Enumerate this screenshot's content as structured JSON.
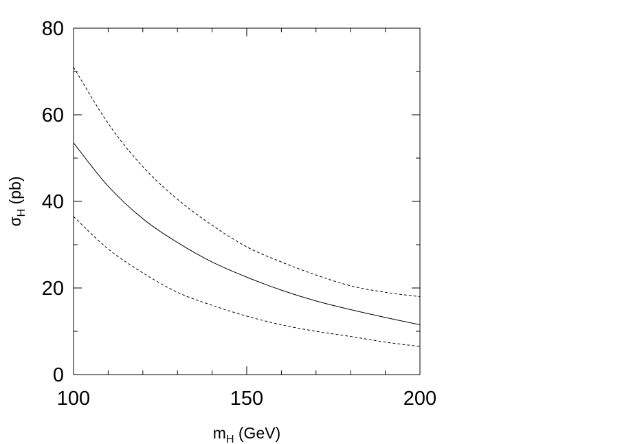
{
  "chart_data": {
    "type": "line",
    "xlabel_main": "m",
    "xlabel_sub": "H",
    "xlabel_unit": " (GeV)",
    "ylabel_main": "σ",
    "ylabel_sub": "H",
    "ylabel_unit": " (pb)",
    "xlim": [
      100,
      200
    ],
    "ylim": [
      0,
      80
    ],
    "x_ticks": [
      100,
      150,
      200
    ],
    "y_ticks": [
      0,
      20,
      40,
      60,
      80
    ],
    "x_minor_step": 10,
    "y_minor_step": 10,
    "grid": false,
    "x": [
      100,
      110,
      120,
      130,
      140,
      150,
      160,
      170,
      180,
      190,
      200
    ],
    "series": [
      {
        "style": "dashed",
        "values": [
          71,
          58,
          48,
          40.5,
          34.5,
          29.5,
          26,
          23,
          20.5,
          19,
          18
        ]
      },
      {
        "style": "solid",
        "values": [
          53.5,
          43.5,
          36,
          30.5,
          26,
          22.5,
          19.5,
          17,
          15,
          13.2,
          11.5
        ]
      },
      {
        "style": "dashed",
        "values": [
          36.5,
          29,
          23.5,
          19,
          16,
          13.5,
          11.5,
          10,
          8.8,
          7.5,
          6.5
        ]
      }
    ]
  }
}
